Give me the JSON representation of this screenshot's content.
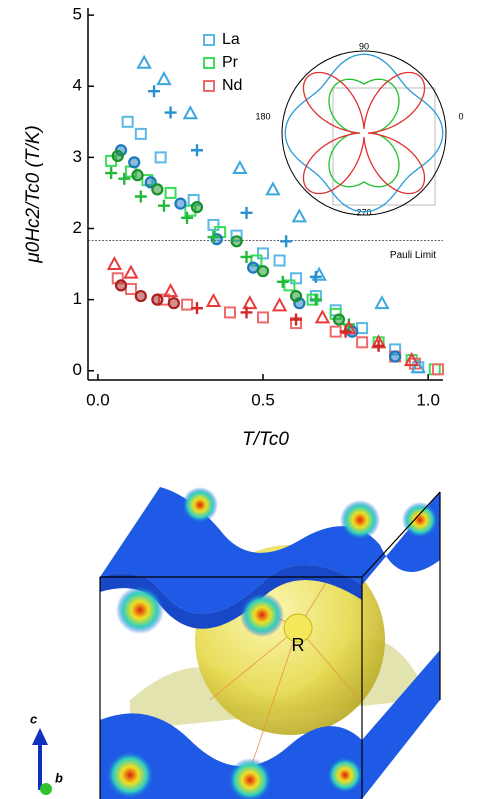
{
  "chart_data": {
    "type": "scatter",
    "xlabel": "T/Tc0",
    "ylabel": "μ0Hc2/Tc0 (T/K)",
    "xlim": [
      -0.03,
      1.045
    ],
    "ylim": [
      -0.13,
      5.1
    ],
    "xticks": [
      {
        "value": 0,
        "label": "0.0"
      },
      0.5,
      {
        "value": 1,
        "label": "1.0"
      }
    ],
    "yticks": [
      0,
      1,
      2,
      3,
      4,
      5
    ],
    "hline": {
      "value": 1.83,
      "label": "Pauli Limit"
    },
    "series": [
      {
        "name": "La",
        "marker": "square",
        "color": "#5bb8e6",
        "x": [
          0.09,
          0.13,
          0.19,
          0.29,
          0.35,
          0.42,
          0.5,
          0.55,
          0.6,
          0.66,
          0.72,
          0.8,
          0.9,
          0.97
        ],
        "values": [
          3.5,
          3.33,
          3.0,
          2.4,
          2.05,
          1.9,
          1.65,
          1.55,
          1.3,
          1.05,
          0.85,
          0.6,
          0.3,
          0.05
        ]
      },
      {
        "name": "Pr",
        "marker": "square",
        "color": "#3ddc5a",
        "x": [
          0.04,
          0.1,
          0.15,
          0.22,
          0.28,
          0.37,
          0.48,
          0.58,
          0.65,
          0.72,
          0.85,
          0.95,
          1.02
        ],
        "values": [
          2.95,
          2.8,
          2.68,
          2.5,
          2.25,
          1.95,
          1.55,
          1.2,
          1.0,
          0.8,
          0.4,
          0.15,
          0.02
        ]
      },
      {
        "name": "Nd",
        "marker": "square",
        "color": "#ee6a6a",
        "x": [
          0.06,
          0.1,
          0.2,
          0.27,
          0.4,
          0.5,
          0.6,
          0.72,
          0.8,
          0.9,
          0.96,
          1.03
        ],
        "values": [
          1.3,
          1.15,
          1.0,
          0.93,
          0.82,
          0.75,
          0.67,
          0.55,
          0.4,
          0.2,
          0.1,
          0.02
        ]
      },
      {
        "marker": "triangle",
        "color": "#3aa8de",
        "x": [
          0.14,
          0.2,
          0.28,
          0.43,
          0.53,
          0.61,
          0.67,
          0.86,
          0.97
        ],
        "values": [
          4.33,
          4.1,
          3.62,
          2.85,
          2.55,
          2.17,
          1.35,
          0.95,
          0.05
        ]
      },
      {
        "marker": "plus",
        "color": "#2a90d0",
        "x": [
          0.17,
          0.22,
          0.3,
          0.45,
          0.57,
          0.66
        ],
        "values": [
          3.93,
          3.63,
          3.1,
          2.22,
          1.82,
          1.32
        ]
      },
      {
        "marker": "circle",
        "color": "#1a78bc",
        "x": [
          0.07,
          0.11,
          0.16,
          0.25,
          0.36,
          0.47,
          0.61,
          0.77,
          0.9
        ],
        "values": [
          3.1,
          2.93,
          2.65,
          2.35,
          1.85,
          1.45,
          0.95,
          0.55,
          0.2
        ]
      },
      {
        "marker": "plus",
        "color": "#22b83a",
        "x": [
          0.04,
          0.08,
          0.13,
          0.2,
          0.27,
          0.35,
          0.45,
          0.56,
          0.66,
          0.76
        ],
        "values": [
          2.78,
          2.7,
          2.45,
          2.32,
          2.15,
          1.88,
          1.6,
          1.25,
          1.0,
          0.65
        ]
      },
      {
        "marker": "circle",
        "color": "#17922a",
        "x": [
          0.06,
          0.12,
          0.18,
          0.3,
          0.42,
          0.5,
          0.6,
          0.73
        ],
        "values": [
          3.02,
          2.75,
          2.55,
          2.3,
          1.82,
          1.4,
          1.05,
          0.72
        ]
      },
      {
        "marker": "triangle",
        "color": "#e83a3a",
        "x": [
          0.05,
          0.1,
          0.22,
          0.35,
          0.46,
          0.55,
          0.68,
          0.76,
          0.85,
          0.95
        ],
        "values": [
          1.5,
          1.38,
          1.12,
          0.98,
          0.95,
          0.92,
          0.75,
          0.6,
          0.4,
          0.15
        ]
      },
      {
        "marker": "circle",
        "color": "#a82020",
        "x": [
          0.07,
          0.13,
          0.18,
          0.23
        ],
        "values": [
          1.2,
          1.05,
          1.0,
          0.95
        ]
      },
      {
        "marker": "plus",
        "color": "#d02828",
        "x": [
          0.3,
          0.45,
          0.6,
          0.75,
          0.85
        ],
        "values": [
          0.88,
          0.82,
          0.72,
          0.55,
          0.35
        ]
      }
    ],
    "inset": {
      "angle_labels": [
        "90",
        "180",
        "270",
        "0"
      ]
    }
  },
  "structure": {
    "atom_label": "R",
    "axis_labels": [
      "c",
      "b"
    ]
  }
}
